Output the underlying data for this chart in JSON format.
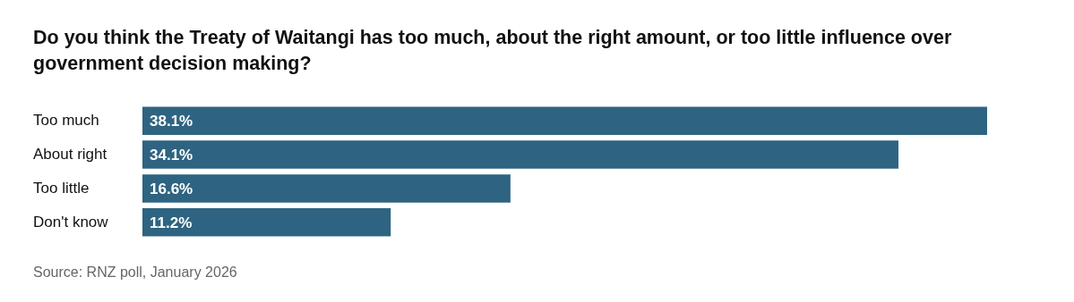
{
  "chart_data": {
    "type": "bar",
    "orientation": "horizontal",
    "title": "Do you think the Treaty of Waitangi has too much, about the right amount, or too little influence over government decision making?",
    "categories": [
      "Too much",
      "About right",
      "Too little",
      "Don't know"
    ],
    "values": [
      38.1,
      34.1,
      16.6,
      11.2
    ],
    "value_labels": [
      "38.1%",
      "34.1%",
      "16.6%",
      "11.2%"
    ],
    "color": "#2e6481",
    "legend": false,
    "tick_labels": "y",
    "annotations": [
      "Source: RNZ poll, January 2026"
    ]
  }
}
